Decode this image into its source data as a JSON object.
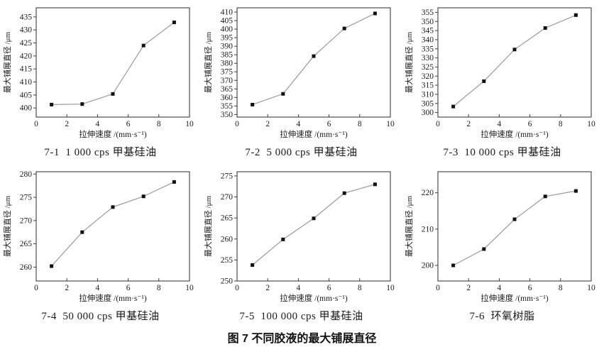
{
  "figure": {
    "caption": "图 7  不同胶液的最大铺展直径"
  },
  "colors": {
    "line": "#9a9a9a",
    "marker": "#111111",
    "axis": "#3c3c3c",
    "text": "#1a1a1a"
  },
  "chart_data": [
    {
      "type": "line",
      "id": "7-1",
      "caption": "7-1  1 000 cps 甲基硅油",
      "xlabel": "拉伸速度 /(mm·s⁻¹)",
      "ylabel": "最大铺展直径 /μm",
      "x": [
        1,
        3,
        5,
        7,
        9
      ],
      "y": [
        401.3,
        401.5,
        405.4,
        424.0,
        432.9
      ],
      "xlim": [
        0,
        10
      ],
      "ylim": [
        396.5,
        438.5
      ],
      "xticks": [
        0,
        2,
        4,
        6,
        8,
        10
      ],
      "yticks": [
        400,
        405,
        410,
        415,
        420,
        425,
        430,
        435
      ],
      "marker": "square",
      "legend": null,
      "grid": false
    },
    {
      "type": "line",
      "id": "7-2",
      "caption": "7-2  5 000 cps 甲基硅油",
      "xlabel": "拉伸速度 /(mm·s⁻¹)",
      "ylabel": "最大铺展直径 /μm",
      "x": [
        1,
        3,
        5,
        7,
        9
      ],
      "y": [
        355.8,
        362.1,
        384.2,
        400.4,
        409.2
      ],
      "xlim": [
        0,
        10
      ],
      "ylim": [
        348.5,
        412.5
      ],
      "xticks": [
        0,
        2,
        4,
        6,
        8,
        10
      ],
      "yticks": [
        350,
        355,
        360,
        365,
        370,
        375,
        380,
        385,
        390,
        395,
        400,
        405,
        410
      ],
      "marker": "square",
      "legend": null,
      "grid": false
    },
    {
      "type": "line",
      "id": "7-3",
      "caption": "7-3  10 000 cps 甲基硅油",
      "xlabel": "拉伸速度 /(mm·s⁻¹)",
      "ylabel": "最大铺展直径 /μm",
      "x": [
        1,
        3,
        5,
        7,
        9
      ],
      "y": [
        303.3,
        317.2,
        334.6,
        346.4,
        353.5
      ],
      "xlim": [
        0,
        10
      ],
      "ylim": [
        297.5,
        357.5
      ],
      "xticks": [
        0,
        2,
        4,
        6,
        8,
        10
      ],
      "yticks": [
        300,
        305,
        310,
        315,
        320,
        325,
        330,
        335,
        340,
        345,
        350,
        355
      ],
      "marker": "square",
      "legend": null,
      "grid": false
    },
    {
      "type": "line",
      "id": "7-4",
      "caption": "7-4  50 000 cps 甲基硅油",
      "xlabel": "拉伸速度 /(mm·s⁻¹)",
      "ylabel": "最大铺展直径 /μm",
      "x": [
        1,
        3,
        5,
        7,
        9
      ],
      "y": [
        260.2,
        267.5,
        272.9,
        275.2,
        278.3
      ],
      "xlim": [
        0,
        10
      ],
      "ylim": [
        257.0,
        280.5
      ],
      "xticks": [
        0,
        2,
        4,
        6,
        8,
        10
      ],
      "yticks": [
        260,
        265,
        270,
        275,
        280
      ],
      "marker": "square",
      "legend": null,
      "grid": false
    },
    {
      "type": "line",
      "id": "7-5",
      "caption": "7-5  100 000 cps 甲基硅油",
      "xlabel": "拉伸速度 /(mm·s⁻¹)",
      "ylabel": "最大铺展直径 /μm",
      "x": [
        1,
        3,
        5,
        7,
        9
      ],
      "y": [
        253.8,
        259.9,
        264.9,
        270.9,
        273.0
      ],
      "xlim": [
        0,
        10
      ],
      "ylim": [
        250.0,
        276.0
      ],
      "xticks": [
        0,
        2,
        4,
        6,
        8,
        10
      ],
      "yticks": [
        250,
        255,
        260,
        265,
        270,
        275
      ],
      "marker": "square",
      "legend": null,
      "grid": false
    },
    {
      "type": "line",
      "id": "7-6",
      "caption": "7-6  环氧树脂",
      "xlabel": "拉伸速度 /(mm·s⁻¹)",
      "ylabel": "最大铺展直径 /μm",
      "x": [
        1,
        3,
        5,
        7,
        9
      ],
      "y": [
        200.0,
        204.5,
        212.7,
        219.0,
        220.5
      ],
      "xlim": [
        0,
        10
      ],
      "ylim": [
        195.7,
        225.8
      ],
      "xticks": [
        0,
        2,
        4,
        6,
        8,
        10
      ],
      "yticks": [
        200,
        210,
        220
      ],
      "marker": "square",
      "legend": null,
      "grid": false
    }
  ]
}
